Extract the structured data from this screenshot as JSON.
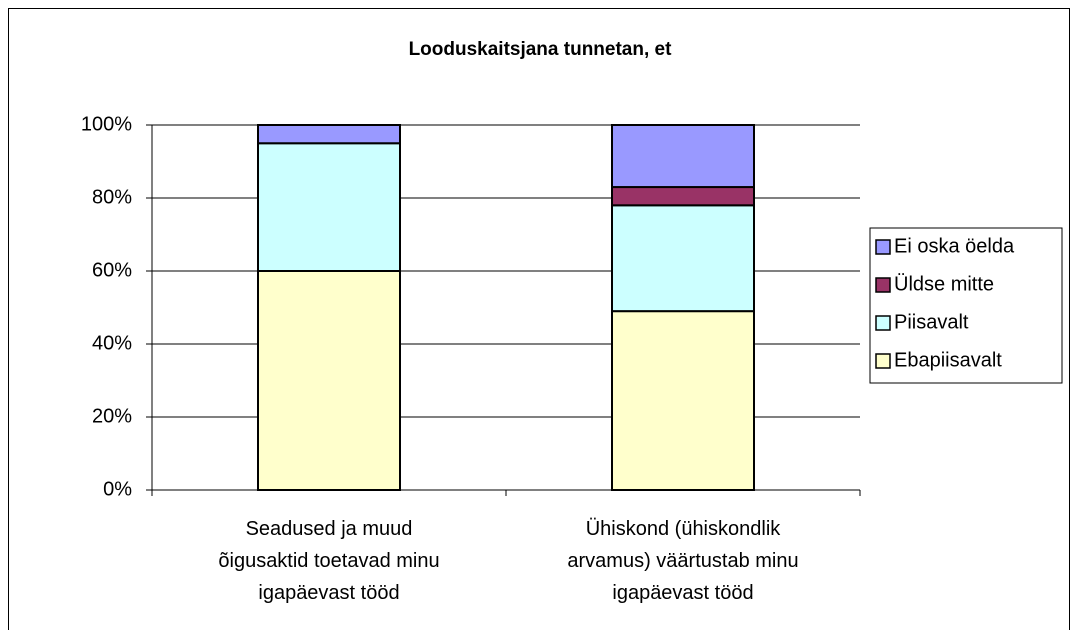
{
  "chart_data": {
    "type": "stacked_bar",
    "title": "Looduskaitsjana tunnetan, et",
    "categories": [
      "Seadused ja muud\nõigusaktid toetavad minu\nigapäevast tööd",
      "Ühiskond (ühiskondlik\narvamus) väärtustab minu\nigapäevast tööd"
    ],
    "series": [
      {
        "name": "Ebapiisavalt",
        "color": "#FFFFCC",
        "values": [
          60,
          49
        ]
      },
      {
        "name": "Piisavalt",
        "color": "#CCFFFF",
        "values": [
          35,
          29
        ]
      },
      {
        "name": "Üldse mitte",
        "color": "#993366",
        "values": [
          0,
          5
        ]
      },
      {
        "name": "Ei oska öelda",
        "color": "#9999FF",
        "values": [
          5,
          17
        ]
      }
    ],
    "ylim": [
      0,
      100
    ],
    "yticks": [
      {
        "value": 0,
        "label": "0%"
      },
      {
        "value": 20,
        "label": "20%"
      },
      {
        "value": 40,
        "label": "40%"
      },
      {
        "value": 60,
        "label": "60%"
      },
      {
        "value": 80,
        "label": "80%"
      },
      {
        "value": 100,
        "label": "100%"
      }
    ],
    "grid": true,
    "legend": "right"
  }
}
